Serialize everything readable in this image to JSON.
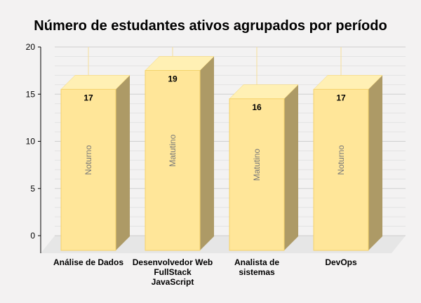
{
  "chart_data": {
    "type": "bar",
    "title": "Número de estudantes ativos agrupados por período",
    "categories": [
      [
        "Análise de Dados"
      ],
      [
        "Desenvolvedor Web",
        "FullStack",
        "JavaScript"
      ],
      [
        "Analista de",
        "sistemas"
      ],
      [
        "DevOps"
      ]
    ],
    "values": [
      17,
      19,
      16,
      17
    ],
    "bar_labels": [
      "Noturno",
      "Matutino",
      "Matutino",
      "Noturno"
    ],
    "y_ticks": [
      0,
      5,
      10,
      15,
      20
    ],
    "ylim": [
      0,
      20
    ],
    "grid": true,
    "colors": {
      "front": "#ffe699",
      "top": "#fff0b4",
      "side": "#ad9a66",
      "bar_edge": "#f4d26a",
      "grid": "#dcdcdc",
      "axis": "#000000",
      "floor": "#e6e6e6"
    }
  }
}
